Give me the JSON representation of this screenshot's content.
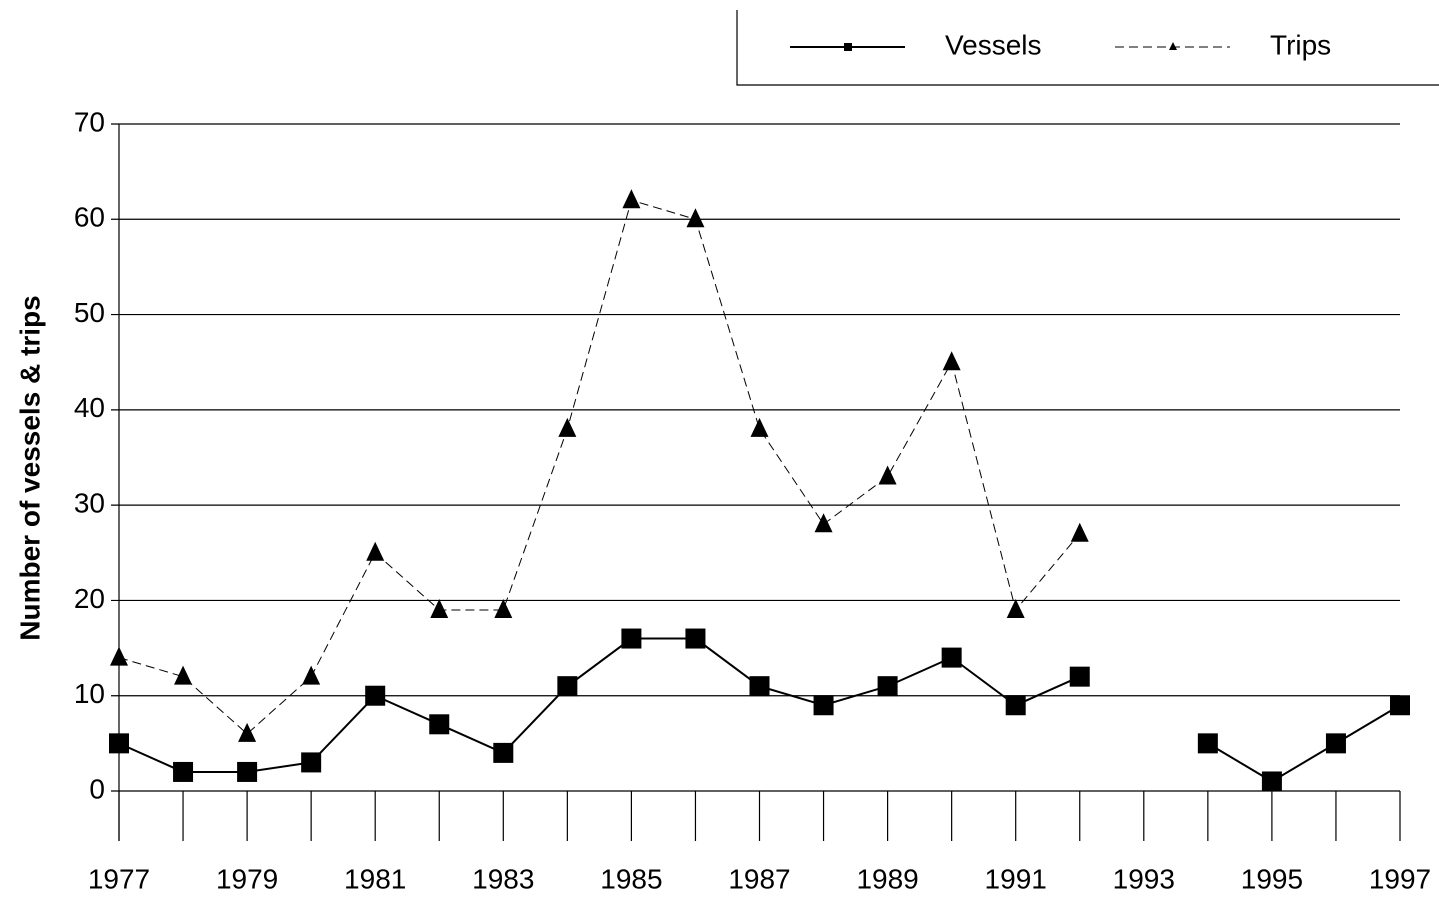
{
  "chart_data": {
    "type": "line",
    "ylabel": "Number of vessels & trips",
    "x": [
      1977,
      1978,
      1979,
      1980,
      1981,
      1982,
      1983,
      1984,
      1985,
      1986,
      1987,
      1988,
      1989,
      1990,
      1991,
      1992,
      1993,
      1994,
      1995,
      1996,
      1997
    ],
    "series": [
      {
        "name": "Vessels",
        "color": "#000000",
        "marker": "square",
        "dash": false,
        "values": [
          5,
          2,
          2,
          3,
          10,
          7,
          4,
          11,
          16,
          16,
          11,
          9,
          11,
          14,
          9,
          12,
          null,
          5,
          1,
          5,
          9
        ]
      },
      {
        "name": "Trips",
        "color": "#000000",
        "marker": "triangle",
        "dash": true,
        "values": [
          14,
          12,
          6,
          12,
          25,
          19,
          19,
          38,
          62,
          60,
          38,
          28,
          33,
          45,
          19,
          27,
          null,
          null,
          null,
          null,
          null
        ]
      }
    ],
    "xlim": [
      1977,
      1997
    ],
    "xticks": [
      1977,
      1979,
      1981,
      1983,
      1985,
      1987,
      1989,
      1991,
      1993,
      1995,
      1997
    ],
    "ylim": [
      0,
      70
    ],
    "yticks": [
      0,
      10,
      20,
      30,
      40,
      50,
      60,
      70
    ],
    "grid": true,
    "legend": "top-right"
  }
}
